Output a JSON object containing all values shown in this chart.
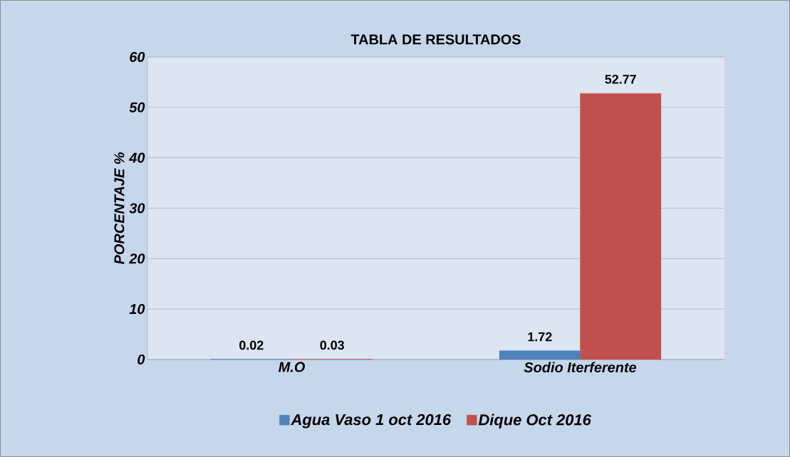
{
  "chart_data": {
    "type": "bar",
    "title": "TABLA DE RESULTADOS",
    "ylabel": "PORCENTAJE  %",
    "categories": [
      "M.O",
      "Sodio Iterferente"
    ],
    "series": [
      {
        "name": "Agua Vaso 1  oct 2016",
        "color": "#4f81bd",
        "values": [
          0.02,
          1.72
        ]
      },
      {
        "name": "Dique Oct 2016",
        "color": "#c0504d",
        "values": [
          0.03,
          52.77
        ]
      }
    ],
    "ylim": [
      0,
      60
    ],
    "yticks": [
      0,
      10,
      20,
      30,
      40,
      50,
      60
    ],
    "grid": "y",
    "legend": "bottom",
    "data_labels": true
  }
}
